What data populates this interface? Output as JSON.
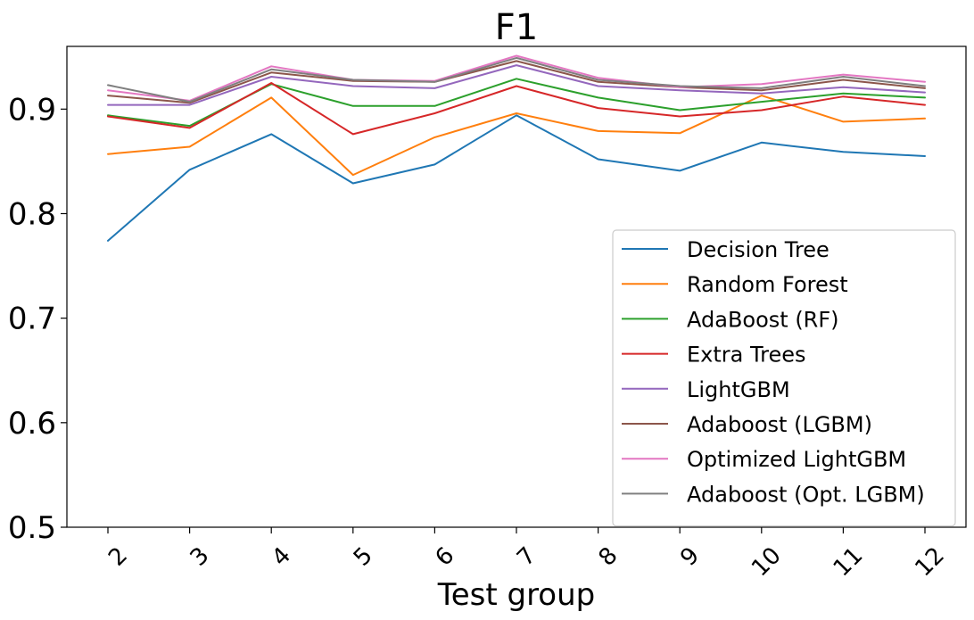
{
  "chart_data": {
    "type": "line",
    "title": "F1",
    "xlabel": "Test group",
    "ylabel": "",
    "categories": [
      "2",
      "3",
      "4",
      "5",
      "6",
      "7",
      "8",
      "9",
      "10",
      "11",
      "12"
    ],
    "ylim": [
      0.5,
      0.96
    ],
    "yticks": [
      "0.5",
      "0.6",
      "0.7",
      "0.8",
      "0.9"
    ],
    "ytick_values": [
      0.5,
      0.6,
      0.7,
      0.8,
      0.9
    ],
    "grid": false,
    "legend_position": "lower-right",
    "series": [
      {
        "name": "Decision Tree",
        "color": "#1f77b4",
        "values": [
          0.774,
          0.842,
          0.876,
          0.829,
          0.847,
          0.894,
          0.852,
          0.841,
          0.868,
          0.859,
          0.855
        ]
      },
      {
        "name": "Random Forest",
        "color": "#ff7f0e",
        "values": [
          0.857,
          0.864,
          0.911,
          0.837,
          0.873,
          0.896,
          0.879,
          0.877,
          0.913,
          0.888,
          0.891
        ]
      },
      {
        "name": "AdaBoost (RF)",
        "color": "#2ca02c",
        "values": [
          0.894,
          0.884,
          0.924,
          0.903,
          0.903,
          0.929,
          0.911,
          0.899,
          0.907,
          0.915,
          0.911
        ]
      },
      {
        "name": "Extra Trees",
        "color": "#d62728",
        "values": [
          0.893,
          0.882,
          0.925,
          0.876,
          0.896,
          0.922,
          0.901,
          0.893,
          0.899,
          0.912,
          0.904
        ]
      },
      {
        "name": "LightGBM",
        "color": "#9467bd",
        "values": [
          0.904,
          0.904,
          0.931,
          0.922,
          0.92,
          0.942,
          0.922,
          0.918,
          0.915,
          0.921,
          0.916
        ]
      },
      {
        "name": "Adaboost (LGBM)",
        "color": "#8c564b",
        "values": [
          0.913,
          0.906,
          0.935,
          0.927,
          0.926,
          0.946,
          0.926,
          0.921,
          0.918,
          0.928,
          0.92
        ]
      },
      {
        "name": "Optimized LightGBM",
        "color": "#e377c2",
        "values": [
          0.918,
          0.908,
          0.941,
          0.928,
          0.927,
          0.951,
          0.93,
          0.921,
          0.924,
          0.933,
          0.926
        ]
      },
      {
        "name": "Adaboost (Opt. LGBM)",
        "color": "#7f7f7f",
        "values": [
          0.923,
          0.907,
          0.938,
          0.928,
          0.926,
          0.949,
          0.928,
          0.922,
          0.92,
          0.931,
          0.922
        ]
      }
    ]
  }
}
